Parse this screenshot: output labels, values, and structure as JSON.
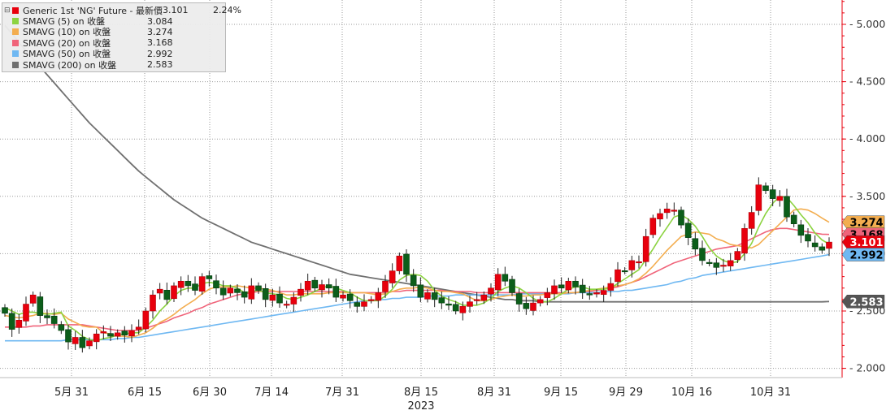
{
  "chart_data": {
    "type": "candlestick",
    "title": "",
    "xlabel": "",
    "ylabel": "",
    "ylim": [
      1.9,
      5.25
    ],
    "y_ticks": [
      "2.000",
      "2.500",
      "3.000",
      "3.500",
      "4.000",
      "4.500",
      "5.000"
    ],
    "x_ticks": [
      "5月 31",
      "6月 15",
      "6月 30",
      "7月 14",
      "7月 31",
      "8月 15",
      "8月 31",
      "9月 15",
      "9月 29",
      "10月 16",
      "10月 31"
    ],
    "x_year": "2023",
    "grid": true,
    "legend_position": "top-left",
    "legend": [
      {
        "name": "Generic 1st 'NG' Future - 最新價",
        "value": "3.101",
        "change": "2.24%",
        "color": "#e8000d"
      },
      {
        "name": "SMAVG (5)  on 收盤",
        "value": "3.084",
        "color": "#8cd341"
      },
      {
        "name": "SMAVG (10)  on 收盤",
        "value": "3.274",
        "color": "#f3ad4f"
      },
      {
        "name": "SMAVG (20)  on 收盤",
        "value": "3.168",
        "color": "#f0647a"
      },
      {
        "name": "SMAVG (50)  on 收盤",
        "value": "2.992",
        "color": "#6fb8f2"
      },
      {
        "name": "SMAVG (200)  on 收盤",
        "value": "2.583",
        "color": "#707070"
      }
    ],
    "price_tags": [
      {
        "value": "3.274",
        "color": "#f3ad4f",
        "text_color": "#000000"
      },
      {
        "value": "3.168",
        "color": "#f0647a",
        "text_color": "#000000"
      },
      {
        "value": "3.101",
        "color": "#e8000d",
        "text_color": "#ffffff"
      },
      {
        "value": "2.992",
        "color": "#6fb8f2",
        "text_color": "#000000"
      },
      {
        "value": "2.583",
        "color": "#555555",
        "text_color": "#ffffff"
      }
    ],
    "candle_close": [
      2.48,
      2.34,
      2.42,
      2.56,
      2.64,
      2.46,
      2.44,
      2.39,
      2.33,
      2.23,
      2.27,
      2.18,
      2.24,
      2.3,
      2.32,
      2.28,
      2.31,
      2.29,
      2.33,
      2.36,
      2.5,
      2.64,
      2.69,
      2.6,
      2.72,
      2.76,
      2.72,
      2.68,
      2.8,
      2.78,
      2.7,
      2.64,
      2.7,
      2.66,
      2.62,
      2.72,
      2.68,
      2.6,
      2.64,
      2.57,
      2.56,
      2.62,
      2.69,
      2.76,
      2.7,
      2.73,
      2.7,
      2.62,
      2.64,
      2.59,
      2.54,
      2.58,
      2.6,
      2.66,
      2.76,
      2.85,
      2.98,
      2.82,
      2.72,
      2.62,
      2.66,
      2.6,
      2.57,
      2.55,
      2.5,
      2.54,
      2.58,
      2.6,
      2.64,
      2.7,
      2.82,
      2.76,
      2.66,
      2.56,
      2.52,
      2.57,
      2.6,
      2.66,
      2.72,
      2.7,
      2.76,
      2.71,
      2.66,
      2.64,
      2.66,
      2.68,
      2.74,
      2.86,
      2.85,
      2.94,
      2.93,
      3.15,
      3.31,
      3.35,
      3.39,
      3.38,
      3.25,
      3.14,
      3.04,
      2.94,
      2.92,
      2.88,
      2.9,
      2.94,
      3.02,
      3.22,
      3.36,
      3.6,
      3.55,
      3.48,
      3.5,
      3.32,
      3.26,
      3.16,
      3.11,
      3.06,
      3.03,
      3.101
    ],
    "ma5": [
      2.53,
      2.5,
      2.47,
      2.49,
      2.49,
      2.48,
      2.47,
      2.48,
      2.49,
      2.37,
      2.33,
      2.28,
      2.25,
      2.24,
      2.26,
      2.27,
      2.29,
      2.3,
      2.31,
      2.31,
      2.36,
      2.42,
      2.5,
      2.56,
      2.63,
      2.68,
      2.7,
      2.7,
      2.74,
      2.75,
      2.74,
      2.72,
      2.72,
      2.7,
      2.66,
      2.67,
      2.68,
      2.66,
      2.65,
      2.64,
      2.61,
      2.6,
      2.62,
      2.64,
      2.67,
      2.7,
      2.72,
      2.7,
      2.68,
      2.66,
      2.62,
      2.59,
      2.59,
      2.59,
      2.63,
      2.69,
      2.77,
      2.81,
      2.82,
      2.81,
      2.76,
      2.68,
      2.63,
      2.6,
      2.58,
      2.55,
      2.55,
      2.55,
      2.57,
      2.61,
      2.67,
      2.7,
      2.72,
      2.7,
      2.66,
      2.61,
      2.58,
      2.58,
      2.61,
      2.65,
      2.69,
      2.71,
      2.71,
      2.69,
      2.69,
      2.69,
      2.7,
      2.74,
      2.78,
      2.82,
      2.86,
      2.95,
      3.04,
      3.14,
      3.23,
      3.32,
      3.34,
      3.3,
      3.24,
      3.15,
      3.05,
      2.98,
      2.94,
      2.92,
      2.93,
      3.0,
      3.09,
      3.23,
      3.35,
      3.44,
      3.5,
      3.49,
      3.42,
      3.34,
      3.27,
      3.18,
      3.12,
      3.084
    ],
    "ma10": [
      2.46,
      2.45,
      2.44,
      2.45,
      2.46,
      2.48,
      2.48,
      2.47,
      2.48,
      2.43,
      2.4,
      2.37,
      2.36,
      2.36,
      2.31,
      2.3,
      2.28,
      2.28,
      2.27,
      2.29,
      2.31,
      2.35,
      2.4,
      2.43,
      2.47,
      2.52,
      2.56,
      2.6,
      2.65,
      2.69,
      2.71,
      2.71,
      2.71,
      2.72,
      2.71,
      2.7,
      2.7,
      2.69,
      2.68,
      2.66,
      2.64,
      2.64,
      2.65,
      2.65,
      2.65,
      2.65,
      2.66,
      2.66,
      2.66,
      2.66,
      2.66,
      2.66,
      2.65,
      2.64,
      2.65,
      2.67,
      2.69,
      2.7,
      2.7,
      2.71,
      2.7,
      2.68,
      2.67,
      2.67,
      2.66,
      2.65,
      2.62,
      2.59,
      2.59,
      2.6,
      2.62,
      2.63,
      2.64,
      2.63,
      2.63,
      2.64,
      2.64,
      2.65,
      2.65,
      2.65,
      2.66,
      2.66,
      2.67,
      2.68,
      2.69,
      2.7,
      2.71,
      2.72,
      2.73,
      2.75,
      2.78,
      2.83,
      2.89,
      2.96,
      3.03,
      3.09,
      3.15,
      3.17,
      3.19,
      3.18,
      3.17,
      3.13,
      3.11,
      3.08,
      3.07,
      3.06,
      3.05,
      3.08,
      3.14,
      3.2,
      3.26,
      3.32,
      3.38,
      3.39,
      3.38,
      3.35,
      3.31,
      3.274
    ],
    "ma20": [
      2.36,
      2.36,
      2.36,
      2.36,
      2.37,
      2.37,
      2.38,
      2.38,
      2.38,
      2.38,
      2.38,
      2.38,
      2.37,
      2.36,
      2.35,
      2.34,
      2.33,
      2.33,
      2.33,
      2.33,
      2.35,
      2.37,
      2.39,
      2.41,
      2.44,
      2.46,
      2.48,
      2.51,
      2.53,
      2.56,
      2.58,
      2.6,
      2.62,
      2.64,
      2.65,
      2.66,
      2.67,
      2.67,
      2.67,
      2.67,
      2.67,
      2.67,
      2.67,
      2.67,
      2.67,
      2.67,
      2.67,
      2.67,
      2.67,
      2.66,
      2.66,
      2.66,
      2.66,
      2.66,
      2.66,
      2.67,
      2.67,
      2.68,
      2.68,
      2.68,
      2.68,
      2.68,
      2.68,
      2.67,
      2.67,
      2.67,
      2.67,
      2.66,
      2.66,
      2.66,
      2.66,
      2.66,
      2.66,
      2.66,
      2.66,
      2.66,
      2.66,
      2.66,
      2.66,
      2.66,
      2.66,
      2.66,
      2.67,
      2.67,
      2.68,
      2.69,
      2.7,
      2.71,
      2.73,
      2.75,
      2.77,
      2.8,
      2.83,
      2.86,
      2.89,
      2.92,
      2.94,
      2.96,
      2.98,
      3.0,
      3.02,
      3.04,
      3.05,
      3.06,
      3.07,
      3.1,
      3.13,
      3.16,
      3.19,
      3.21,
      3.22,
      3.22,
      3.21,
      3.2,
      3.19,
      3.18,
      3.17,
      3.168
    ],
    "ma50": [
      2.24,
      2.24,
      2.24,
      2.24,
      2.24,
      2.24,
      2.24,
      2.24,
      2.24,
      2.25,
      2.25,
      2.25,
      2.25,
      2.25,
      2.25,
      2.25,
      2.26,
      2.26,
      2.27,
      2.27,
      2.28,
      2.29,
      2.3,
      2.31,
      2.32,
      2.33,
      2.34,
      2.35,
      2.36,
      2.37,
      2.38,
      2.39,
      2.4,
      2.41,
      2.42,
      2.43,
      2.44,
      2.45,
      2.46,
      2.47,
      2.48,
      2.49,
      2.5,
      2.51,
      2.52,
      2.53,
      2.54,
      2.55,
      2.56,
      2.57,
      2.58,
      2.59,
      2.59,
      2.6,
      2.6,
      2.61,
      2.61,
      2.62,
      2.62,
      2.62,
      2.63,
      2.63,
      2.63,
      2.63,
      2.64,
      2.64,
      2.64,
      2.64,
      2.64,
      2.64,
      2.64,
      2.64,
      2.64,
      2.65,
      2.65,
      2.65,
      2.65,
      2.65,
      2.65,
      2.65,
      2.65,
      2.66,
      2.66,
      2.66,
      2.66,
      2.67,
      2.67,
      2.67,
      2.68,
      2.68,
      2.69,
      2.7,
      2.71,
      2.72,
      2.73,
      2.75,
      2.76,
      2.78,
      2.79,
      2.81,
      2.82,
      2.83,
      2.84,
      2.85,
      2.86,
      2.87,
      2.88,
      2.89,
      2.9,
      2.91,
      2.92,
      2.93,
      2.94,
      2.95,
      2.96,
      2.97,
      2.98,
      2.992
    ],
    "ma200": [
      4.99,
      4.92,
      4.84,
      4.77,
      4.7,
      4.63,
      4.56,
      4.49,
      4.42,
      4.35,
      4.28,
      4.21,
      4.14,
      4.08,
      4.02,
      3.96,
      3.9,
      3.84,
      3.78,
      3.72,
      3.67,
      3.62,
      3.57,
      3.52,
      3.47,
      3.43,
      3.39,
      3.35,
      3.31,
      3.28,
      3.25,
      3.22,
      3.19,
      3.16,
      3.13,
      3.1,
      3.08,
      3.06,
      3.04,
      3.02,
      3.0,
      2.98,
      2.96,
      2.94,
      2.92,
      2.9,
      2.88,
      2.86,
      2.84,
      2.82,
      2.81,
      2.8,
      2.79,
      2.78,
      2.77,
      2.76,
      2.75,
      2.74,
      2.73,
      2.72,
      2.71,
      2.7,
      2.69,
      2.68,
      2.67,
      2.66,
      2.65,
      2.64,
      2.63,
      2.62,
      2.61,
      2.6,
      2.6,
      2.59,
      2.59,
      2.59,
      2.58,
      2.58,
      2.58,
      2.58,
      2.58,
      2.58,
      2.58,
      2.58,
      2.58,
      2.58,
      2.58,
      2.58,
      2.58,
      2.58,
      2.58,
      2.58,
      2.58,
      2.58,
      2.58,
      2.58,
      2.58,
      2.58,
      2.58,
      2.58,
      2.58,
      2.58,
      2.58,
      2.58,
      2.58,
      2.58,
      2.58,
      2.58,
      2.58,
      2.58,
      2.58,
      2.58,
      2.58,
      2.58,
      2.58,
      2.58,
      2.58,
      2.583
    ]
  }
}
